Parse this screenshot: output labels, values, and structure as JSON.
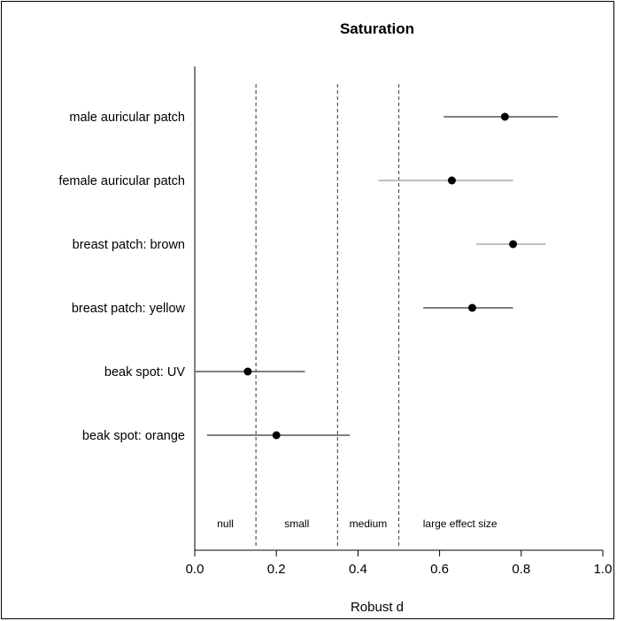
{
  "chart_data": {
    "type": "scatter",
    "title": "Saturation",
    "xlabel": "Robust d",
    "ylabel": "",
    "xlim": [
      0.0,
      1.0
    ],
    "x_ticks": [
      "0.0",
      "0.2",
      "0.4",
      "0.6",
      "0.8",
      "1.0"
    ],
    "grid": false,
    "categories": [
      "male auricular patch",
      "female auricular patch",
      "breast patch: brown",
      "breast patch: yellow",
      "beak spot: UV",
      "beak spot: orange"
    ],
    "estimates": [
      0.76,
      0.63,
      0.78,
      0.68,
      0.13,
      0.2
    ],
    "ci_lower": [
      0.61,
      0.45,
      0.69,
      0.56,
      0.0,
      0.03
    ],
    "ci_upper": [
      0.89,
      0.78,
      0.86,
      0.78,
      0.27,
      0.38
    ],
    "ci_colors": [
      "#555555",
      "#aaaaaa",
      "#aaaaaa",
      "#555555",
      "#555555",
      "#555555"
    ],
    "thresholds": [
      0.15,
      0.35,
      0.5
    ],
    "regions": [
      {
        "label": "null",
        "x": 0.075
      },
      {
        "label": "small",
        "x": 0.25
      },
      {
        "label": "medium",
        "x": 0.425
      },
      {
        "label": "large effect size",
        "x": 0.65
      }
    ],
    "point_color": "#000000",
    "threshold_color": "#555555"
  }
}
